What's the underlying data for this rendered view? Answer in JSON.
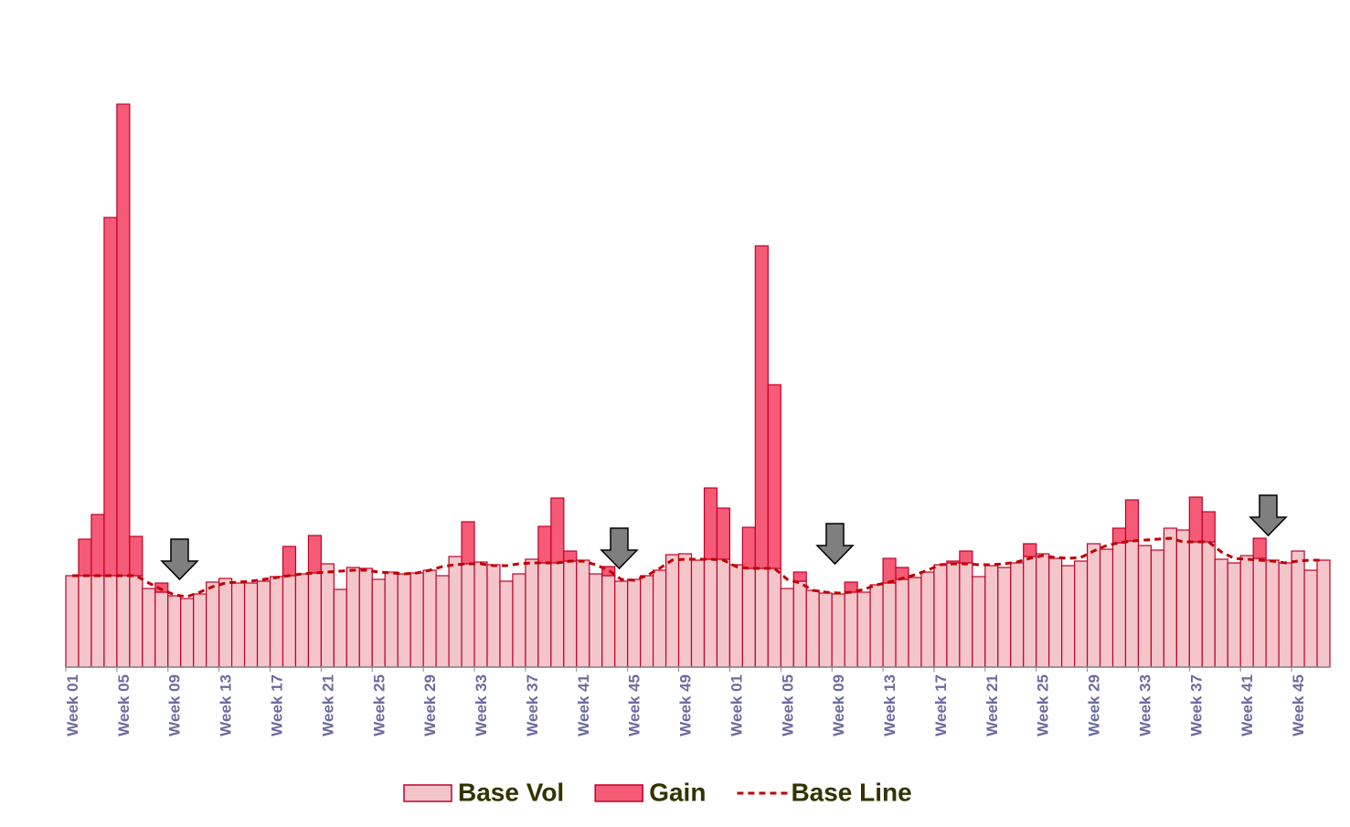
{
  "chart_data": {
    "type": "bar",
    "categories": [
      "Week 01",
      null,
      null,
      null,
      "Week 05",
      null,
      null,
      null,
      "Week 09",
      null,
      null,
      null,
      "Week 13",
      null,
      null,
      null,
      "Week 17",
      null,
      null,
      null,
      "Week 21",
      null,
      null,
      null,
      "Week 25",
      null,
      null,
      null,
      "Week 29",
      null,
      null,
      null,
      "Week 33",
      null,
      null,
      null,
      "Week 37",
      null,
      null,
      null,
      "Week 41",
      null,
      null,
      null,
      "Week 45",
      null,
      null,
      null,
      "Week 49",
      null,
      null,
      null,
      "Week 01",
      null,
      null,
      null,
      "Week 05",
      null,
      null,
      null,
      "Week 09",
      null,
      null,
      null,
      "Week 13",
      null,
      null,
      null,
      "Week 17",
      null,
      null,
      null,
      "Week 21",
      null,
      null,
      null,
      "Week 25",
      null,
      null,
      null,
      "Week 29",
      null,
      null,
      null,
      "Week 33",
      null,
      null,
      null,
      "Week 37",
      null,
      null,
      null,
      "Week 41",
      null,
      null,
      null,
      "Week 45",
      null,
      null
    ],
    "series": [
      {
        "name": "Base Vol",
        "color": "#f4c6ca",
        "stroke": "#c0002a",
        "values": [
          10,
          10,
          10,
          10,
          10,
          10,
          8.6,
          8.2,
          7.8,
          7.5,
          8,
          9.3,
          9.7,
          9.2,
          9.2,
          9.4,
          9.9,
          10,
          10.2,
          10.3,
          11.3,
          8.5,
          10.9,
          10.8,
          9.6,
          10.4,
          10.2,
          10.3,
          10.6,
          10,
          12.1,
          11.3,
          11.5,
          11.2,
          9.4,
          10.2,
          11.8,
          11.4,
          11.4,
          11.6,
          11.7,
          10.2,
          10,
          9.4,
          9.6,
          10,
          10.6,
          12.3,
          12.4,
          11.7,
          11.8,
          11.8,
          11.2,
          10.8,
          10.8,
          10.8,
          8.6,
          9.4,
          8.4,
          8.1,
          8,
          8.2,
          8.2,
          9,
          9.2,
          9.6,
          9.8,
          10.4,
          11.2,
          11.4,
          11.4,
          9.9,
          11.1,
          10.9,
          11.4,
          12.1,
          12.4,
          11.9,
          11.1,
          11.6,
          13.5,
          12.9,
          13.6,
          13.8,
          13.3,
          12.8,
          15.2,
          15,
          13.7,
          13.7,
          11.8,
          11.4,
          12.2,
          11.9,
          11.7,
          11.4,
          12.7,
          10.6,
          11.7
        ]
      },
      {
        "name": "Gain",
        "color": "#f55a76",
        "stroke": "#c0002a",
        "values": [
          0,
          4,
          6.7,
          39.2,
          51.6,
          4.3,
          0,
          1,
          0,
          0,
          0,
          0,
          0,
          0,
          0,
          0,
          0,
          3.2,
          0,
          4.1,
          0,
          0,
          0,
          0,
          0,
          0,
          0,
          0,
          0,
          0,
          0,
          4.6,
          0,
          0,
          0,
          0,
          0,
          4,
          7.1,
          1.1,
          0,
          0,
          1,
          0,
          0,
          0,
          0,
          0,
          0,
          0,
          7.8,
          5.6,
          0,
          4.5,
          35.3,
          20.1,
          0,
          1,
          0,
          0,
          0,
          1.1,
          0,
          0,
          2.7,
          1.3,
          0,
          0,
          0,
          0.2,
          1.3,
          0,
          0,
          0,
          0,
          1.4,
          0,
          0,
          0,
          0,
          0,
          0,
          1.6,
          4.5,
          0,
          0,
          0,
          0,
          4.9,
          3.3,
          0,
          0,
          0,
          2.2,
          0,
          0,
          0,
          0,
          0
        ]
      },
      {
        "name": "Base Line",
        "type": "line",
        "color": "#c00000",
        "dashed": true,
        "values": [
          10,
          10,
          10,
          10,
          10,
          10,
          9.2,
          8.5,
          7.9,
          7.7,
          8.2,
          8.8,
          9.2,
          9.3,
          9.4,
          9.6,
          9.8,
          10,
          10.2,
          10.3,
          10.4,
          10.5,
          10.6,
          10.6,
          10.4,
          10.3,
          10.2,
          10.3,
          10.6,
          11,
          11.2,
          11.3,
          11.3,
          11.1,
          11.1,
          11.3,
          11.4,
          11.4,
          11.4,
          11.6,
          11.6,
          11.2,
          10.6,
          9.6,
          9.5,
          10,
          10.8,
          11.7,
          11.8,
          11.8,
          11.8,
          11.7,
          11,
          10.8,
          10.8,
          10.8,
          9.6,
          9.2,
          8.4,
          8.2,
          8.1,
          8.2,
          8.5,
          9,
          9.3,
          9.7,
          10.1,
          10.6,
          11.2,
          11.3,
          11.3,
          11.2,
          11.2,
          11.3,
          11.5,
          11.9,
          12.2,
          12,
          11.9,
          12,
          12.7,
          13.3,
          13.6,
          13.8,
          13.9,
          14,
          14.1,
          13.7,
          13.7,
          13.7,
          12.6,
          11.9,
          11.8,
          11.7,
          11.6,
          11.4,
          11.6,
          11.7,
          11.7
        ]
      }
    ],
    "stacked": true
  }
}
